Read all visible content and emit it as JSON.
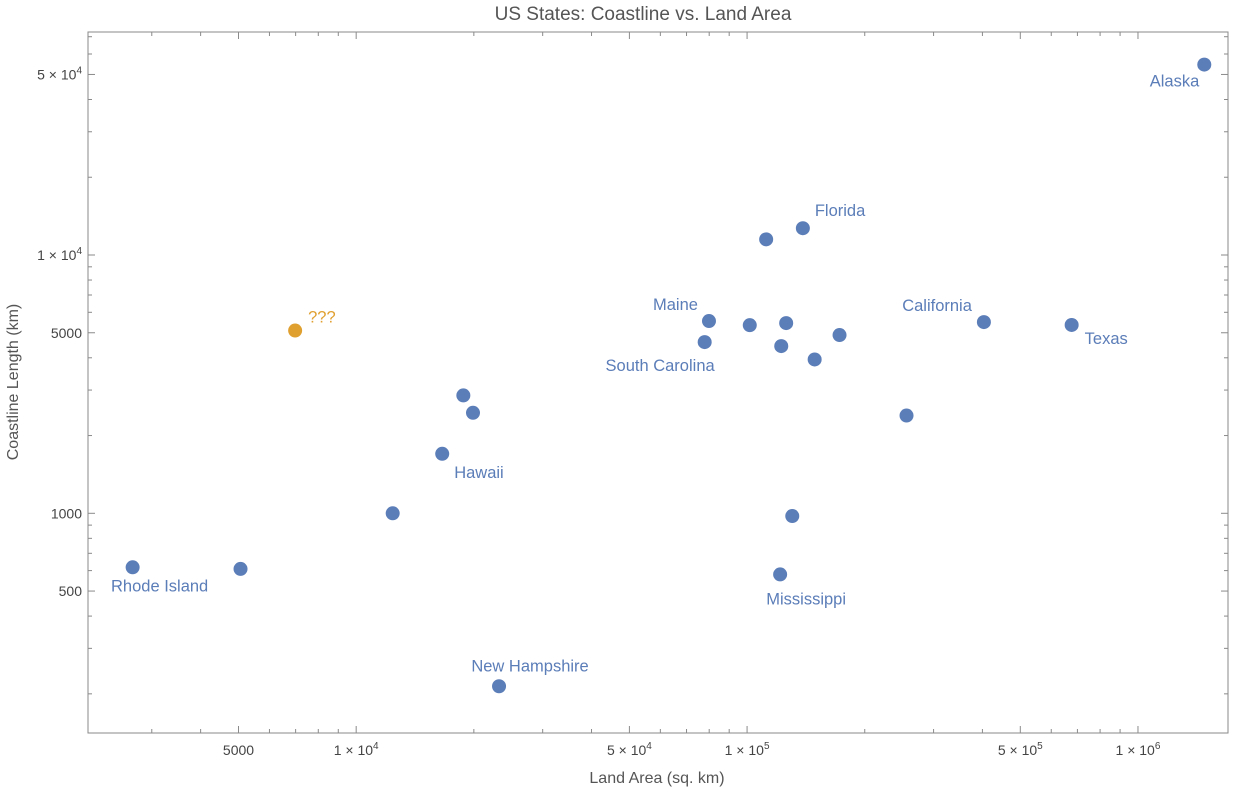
{
  "chart_data": {
    "type": "scatter",
    "title": "US States: Coastline vs. Land Area",
    "xlabel": "Land Area (sq. km)",
    "ylabel": "Coastline Length (km)",
    "x_scale": "log",
    "y_scale": "log",
    "xlim": [
      2700,
      2000000
    ],
    "ylim": [
      170,
      70000
    ],
    "grid": false,
    "legend": "none",
    "x_ticks_major": [
      {
        "value": 5000,
        "label": "5000"
      },
      {
        "value": 10000,
        "label": "1 × 10",
        "exp": "4"
      },
      {
        "value": 50000,
        "label": "5 × 10",
        "exp": "4"
      },
      {
        "value": 100000,
        "label": "1 × 10",
        "exp": "5"
      },
      {
        "value": 500000,
        "label": "5 × 10",
        "exp": "5"
      },
      {
        "value": 1000000,
        "label": "1 × 10",
        "exp": "6"
      }
    ],
    "y_ticks_major": [
      {
        "value": 500,
        "label": "500"
      },
      {
        "value": 1000,
        "label": "1000"
      },
      {
        "value": 5000,
        "label": "5000"
      },
      {
        "value": 10000,
        "label": "1 × 10",
        "exp": "4"
      },
      {
        "value": 50000,
        "label": "5 × 10",
        "exp": "4"
      }
    ],
    "colors": {
      "series": "#5b7db8",
      "highlight": "#e0a030",
      "label": "#5b7db8",
      "highlight_label": "#e0a030"
    },
    "points": [
      {
        "label": "Rhode Island",
        "x": 2680,
        "y": 618,
        "label_pos": "below"
      },
      {
        "label": "",
        "x": 5060,
        "y": 609
      },
      {
        "label": "???",
        "x": 6980,
        "y": 5100,
        "highlight": true,
        "label_pos": "above-right"
      },
      {
        "label": "",
        "x": 12400,
        "y": 1000
      },
      {
        "label": "Hawaii",
        "x": 16600,
        "y": 1700,
        "label_pos": "below-right"
      },
      {
        "label": "",
        "x": 18800,
        "y": 2860
      },
      {
        "label": "",
        "x": 19900,
        "y": 2450
      },
      {
        "label": "New Hampshire",
        "x": 23200,
        "y": 214,
        "label_pos": "above"
      },
      {
        "label": "South Carolina",
        "x": 77900,
        "y": 4600,
        "label_pos": "below-left"
      },
      {
        "label": "Maine",
        "x": 79900,
        "y": 5550,
        "label_pos": "above-left"
      },
      {
        "label": "",
        "x": 101600,
        "y": 5350
      },
      {
        "label": "",
        "x": 111900,
        "y": 11500
      },
      {
        "label": "Mississippi",
        "x": 121500,
        "y": 580,
        "label_pos": "below"
      },
      {
        "label": "",
        "x": 122300,
        "y": 4440
      },
      {
        "label": "",
        "x": 125900,
        "y": 5450
      },
      {
        "label": "",
        "x": 130500,
        "y": 976
      },
      {
        "label": "Florida",
        "x": 138900,
        "y": 12700,
        "label_pos": "above-right"
      },
      {
        "label": "",
        "x": 148900,
        "y": 3940
      },
      {
        "label": "",
        "x": 172400,
        "y": 4900
      },
      {
        "label": "",
        "x": 255800,
        "y": 2390
      },
      {
        "label": "California",
        "x": 403500,
        "y": 5500,
        "label_pos": "above-left"
      },
      {
        "label": "Texas",
        "x": 676600,
        "y": 5360,
        "label_pos": "below-right"
      },
      {
        "label": "Alaska",
        "x": 1477900,
        "y": 54600,
        "label_pos": "below-left"
      }
    ]
  }
}
